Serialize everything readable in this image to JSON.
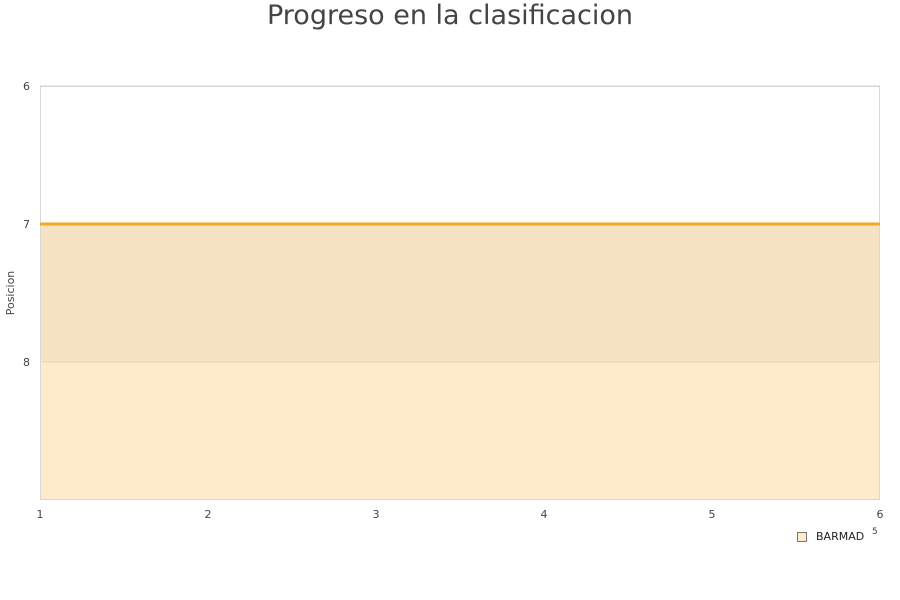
{
  "chart_data": {
    "type": "area",
    "title": "Progreso en la clasificacion",
    "xlabel": "",
    "ylabel": "Posicion",
    "x": [
      1,
      2,
      3,
      4,
      5,
      6
    ],
    "xticks": [
      "1",
      "2",
      "3",
      "4",
      "5",
      "6"
    ],
    "yticks": [
      "6",
      "7",
      "8"
    ],
    "ylim": [
      6,
      9
    ],
    "y_inverted": true,
    "grid": true,
    "legend_position": "bottom-right",
    "series": [
      {
        "name": "BARMAD",
        "values": [
          7,
          7,
          7,
          7,
          7,
          7
        ],
        "line_color": "#f5a623",
        "fill_color": "#feebcc"
      }
    ],
    "band_color": "#f5e3c3",
    "stray_label": "5"
  }
}
